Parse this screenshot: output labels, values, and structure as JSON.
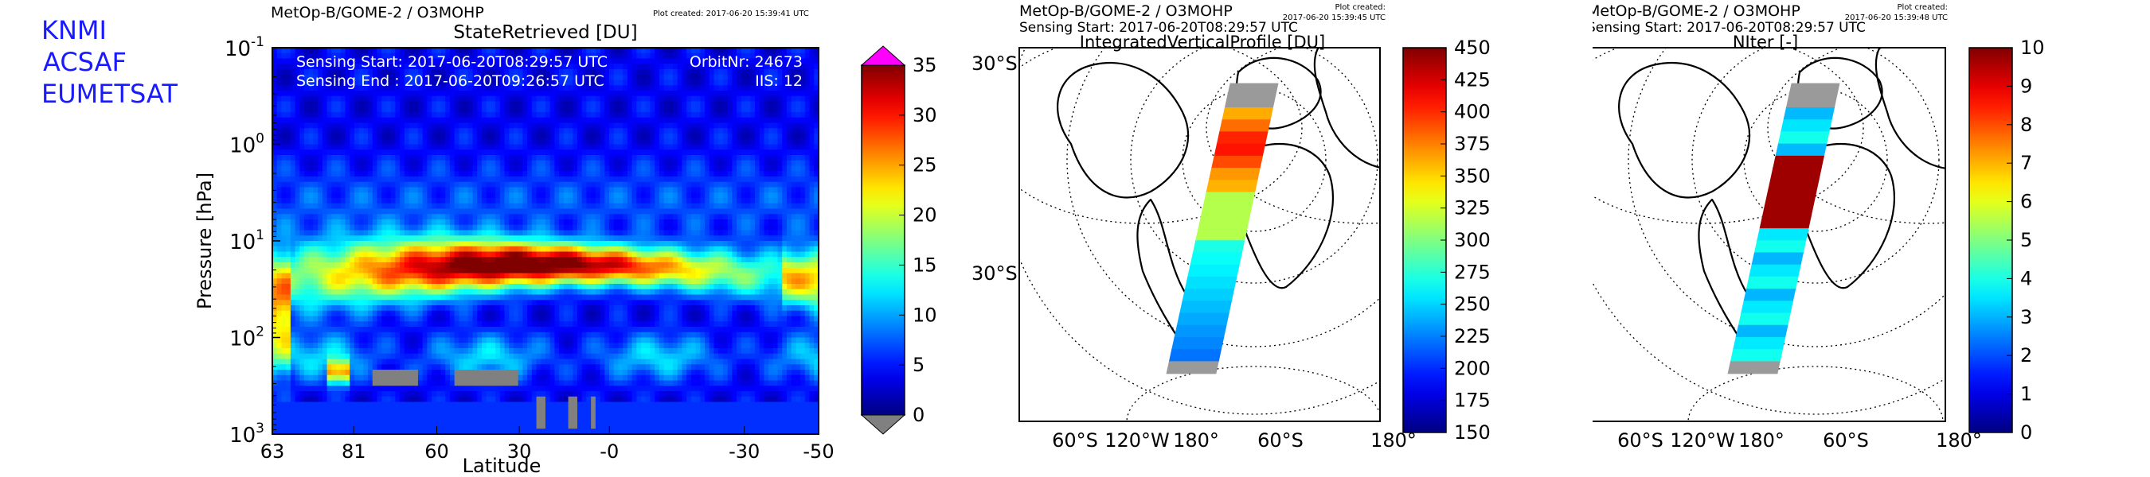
{
  "org_labels": [
    "KNMI",
    "ACSAF",
    "EUMETSAT"
  ],
  "colors": {
    "org_text": "#1a1aff",
    "under": "#808080",
    "over": "#ff00ff",
    "swath_missing": "#9a9a9a"
  },
  "chart_data": [
    {
      "type": "heatmap",
      "header_left": "MetOp-B/GOME-2 / O3MOHP",
      "plot_created": "Plot created: 2017-06-20 15:39:41 UTC",
      "title": "StateRetrieved [DU]",
      "xlabel": "Latitude",
      "ylabel": "Pressure [hPa]",
      "yscale": "log",
      "ylim": [
        1000,
        0.1
      ],
      "y_ticks": [
        {
          "value": 0.1,
          "base": "10",
          "exp": "-1"
        },
        {
          "value": 1,
          "base": "10",
          "exp": "0"
        },
        {
          "value": 10,
          "base": "10",
          "exp": "1"
        },
        {
          "value": 100,
          "base": "10",
          "exp": "2"
        },
        {
          "value": 1000,
          "base": "10",
          "exp": "3"
        }
      ],
      "x_ticks": [
        "63",
        "81",
        "60",
        "30",
        "-0",
        "-30",
        "-50"
      ],
      "annotations": {
        "sensing_start": "Sensing Start: 2017-06-20T08:29:57 UTC",
        "sensing_end": "Sensing End  : 2017-06-20T09:26:57 UTC",
        "orbit": "OrbitNr: 24673",
        "iis": "IIS: 12"
      },
      "colorbar": {
        "min": 0,
        "max": 35,
        "ticks": [
          "0",
          "5",
          "10",
          "15",
          "20",
          "25",
          "30",
          "35"
        ],
        "extend": "both"
      },
      "colormap": "jet"
    },
    {
      "type": "map",
      "header_left": "MetOp-B/GOME-2 / O3MOHP",
      "header_sub": "Sensing Start: 2017-06-20T08:29:57 UTC",
      "plot_created": "Plot created:",
      "plot_created_time": "2017-06-20 15:39:45 UTC",
      "title": "IntegratedVerticalProfile [DU]",
      "lat_labels": [
        "30°S",
        "30°S"
      ],
      "lon_labels": [
        "60°S",
        "120°W",
        "180°",
        "60°S",
        "180°"
      ],
      "colorbar": {
        "min": 150,
        "max": 450,
        "ticks": [
          "150",
          "175",
          "200",
          "225",
          "250",
          "275",
          "300",
          "325",
          "350",
          "375",
          "400",
          "425",
          "450"
        ]
      },
      "colormap": "jet"
    },
    {
      "type": "map",
      "header_left": "MetOp-B/GOME-2 / O3MOHP",
      "header_sub": "Sensing Start: 2017-06-20T08:29:57 UTC",
      "plot_created": "Plot created:",
      "plot_created_time": "2017-06-20 15:39:48 UTC",
      "title": "NIter [-]",
      "lat_labels": [
        "30°S",
        "30°S"
      ],
      "lon_labels": [
        "60°S",
        "120°W",
        "180°",
        "60°S",
        "180°"
      ],
      "colorbar": {
        "min": 0,
        "max": 10,
        "ticks": [
          "0",
          "1",
          "2",
          "3",
          "4",
          "5",
          "6",
          "7",
          "8",
          "9",
          "10"
        ]
      },
      "colormap": "jet"
    }
  ]
}
